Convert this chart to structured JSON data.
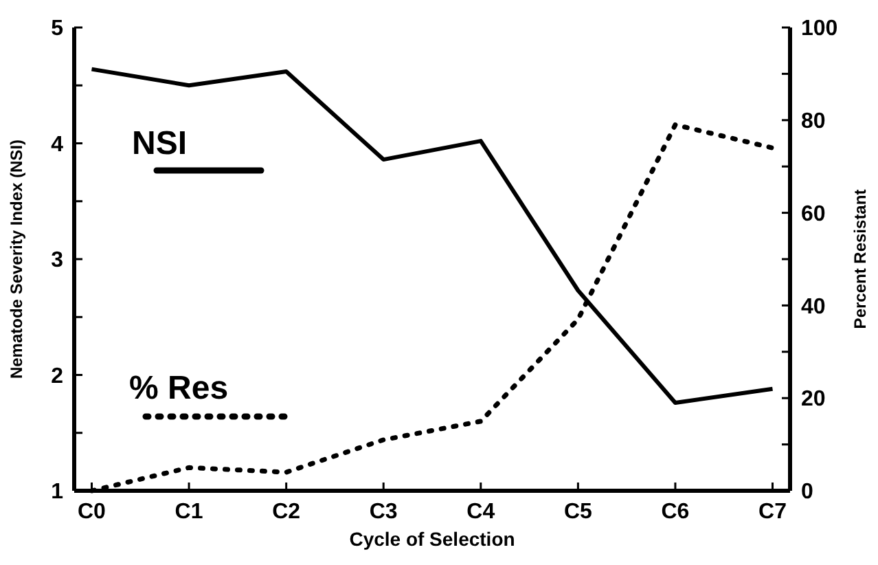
{
  "chart_data": {
    "type": "line",
    "xlabel": "Cycle of Selection",
    "ylabel": "Nematode Severity Index (NSI)",
    "y2label": "Percent Resistant",
    "categories": [
      "C0",
      "C1",
      "C2",
      "C3",
      "C4",
      "C5",
      "C6",
      "C7"
    ],
    "series": [
      {
        "name": "NSI",
        "color": "#000000",
        "line_style": "solid",
        "values": [
          4.64,
          4.5,
          4.62,
          3.86,
          4.02,
          2.73,
          1.76,
          1.88
        ]
      },
      {
        "name": "% Res",
        "color": "#000000",
        "line_style": "dotted",
        "axis": "y2",
        "values": [
          0,
          5,
          4,
          11,
          15,
          37,
          79,
          74
        ]
      }
    ],
    "ylim": [
      1,
      5
    ],
    "yticks": [
      1,
      {
        "value": 1.5,
        "label": null
      },
      2,
      {
        "value": 2.5,
        "label": null
      },
      3,
      {
        "value": 3.5,
        "label": null
      },
      4,
      {
        "value": 4.5,
        "label": null
      },
      5
    ],
    "y2lim": [
      0,
      100
    ],
    "y2ticks": [
      0,
      {
        "value": 10,
        "label": null
      },
      20,
      {
        "value": 30,
        "label": null
      },
      40,
      {
        "value": 50,
        "label": null
      },
      60,
      {
        "value": 70,
        "label": null
      },
      80,
      {
        "value": 90,
        "label": null
      },
      100
    ],
    "legend": "left",
    "marker": "none",
    "grid": false
  }
}
